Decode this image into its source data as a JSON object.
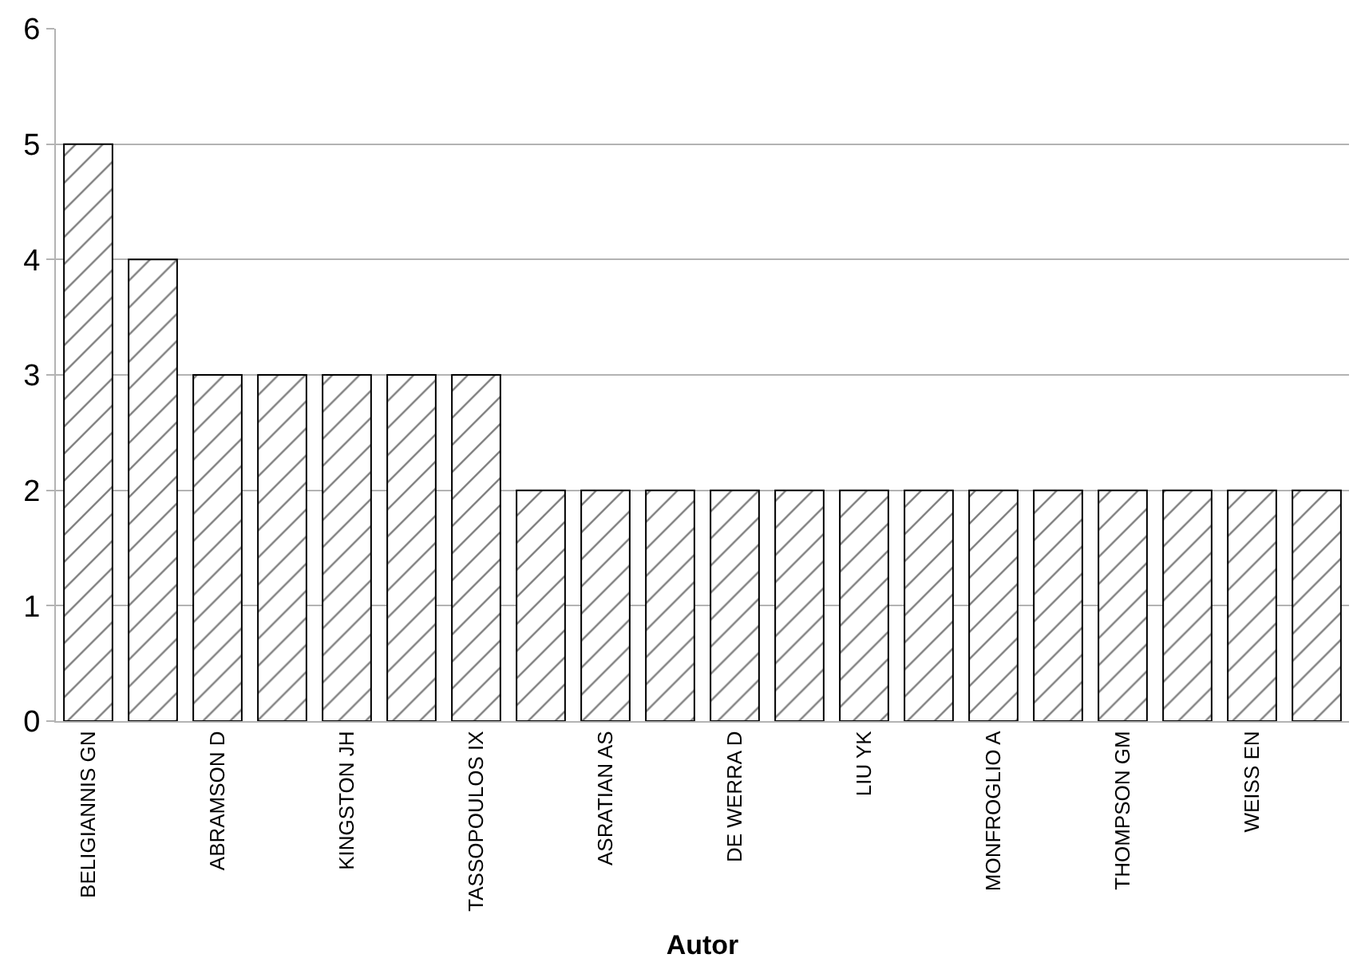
{
  "chart_data": {
    "type": "bar",
    "xlabel": "Autor",
    "categories": [
      "BELIGIANNIS GN",
      null,
      "ABRAMSON D",
      null,
      "KINGSTON JH",
      null,
      "TASSOPOULOS IX",
      null,
      "ASRATIAN AS",
      null,
      "DE WERRA D",
      null,
      "LIU YK",
      null,
      "MONFROGLIO A",
      null,
      "THOMPSON GM",
      null,
      "WEISS EN",
      null
    ],
    "values": [
      5,
      4,
      3,
      3,
      3,
      3,
      3,
      2,
      2,
      2,
      2,
      2,
      2,
      2,
      2,
      2,
      2,
      2,
      2,
      2
    ],
    "color": "#000000",
    "ylim": [
      0,
      6
    ],
    "yticks": [
      0,
      1,
      2,
      3,
      4,
      5,
      6
    ],
    "grid": "y"
  }
}
